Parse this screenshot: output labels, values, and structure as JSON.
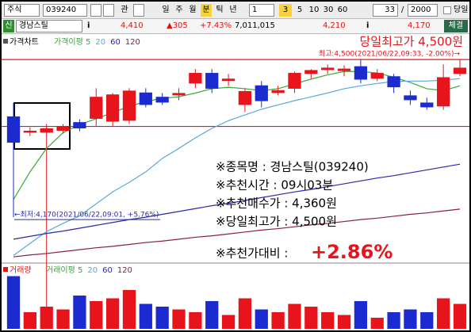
{
  "toolbar": {
    "market": "주식",
    "code": "039240",
    "watch": "관",
    "periods": [
      "일",
      "주",
      "월",
      "분",
      "틱",
      "년"
    ],
    "interval": "1",
    "minutes": [
      "3",
      "5",
      "10",
      "30",
      "60"
    ],
    "count": "33",
    "separator": "/",
    "total": "2000",
    "today": "당일"
  },
  "quote": {
    "badge": "신",
    "name": "경남스틸",
    "info": "i",
    "price": "4,410",
    "change": "▲305",
    "rate": "+7.43%",
    "volume": "7,011,015",
    "open": "4,210",
    "info2": "i",
    "low": "4,170",
    "trade": "체결"
  },
  "annotations": {
    "high_title": "당일최고가 4,500원",
    "high_note": "최고:4,500(2021/06/22,09:33, -2.00%)→",
    "low_note": "←최저:4,170(2021/06/22,09:01, +5.76%)",
    "lines": [
      "※종목명 : 경남스틸(039240)",
      "※추천시간 : 09시03분",
      "※추천매수가 : 4,360원",
      "※당일최고가 : 4,500원",
      "※추천가대비 : "
    ],
    "gain": "+2.86%"
  },
  "chart_data": [
    {
      "type": "candlestick",
      "title": "가격차트",
      "ylim": [
        4074,
        4555
      ],
      "up_color": "#e8141c",
      "down_color": "#1c2bd0",
      "reference_lines": [
        4500,
        4360
      ],
      "reference_color": "#e8141c",
      "open": [
        4381,
        4347,
        4347,
        4351,
        4369,
        4376,
        4370,
        4372,
        4431,
        4422,
        4425,
        4450,
        4472,
        4455,
        4405,
        4446,
        4430,
        4439,
        4470,
        4478,
        4476,
        4486,
        4460,
        4465,
        4425,
        4410,
        4402,
        4470
      ],
      "high": [
        4409,
        4358,
        4365,
        4365,
        4375,
        4440,
        4430,
        4440,
        4440,
        4430,
        4440,
        4480,
        4480,
        4470,
        4440,
        4455,
        4445,
        4475,
        4480,
        4490,
        4488,
        4500,
        4480,
        4470,
        4435,
        4420,
        4490,
        4500
      ],
      "low": [
        4170,
        4340,
        4336,
        4345,
        4350,
        4360,
        4360,
        4365,
        4400,
        4405,
        4415,
        4440,
        4430,
        4445,
        4390,
        4400,
        4425,
        4430,
        4460,
        4470,
        4465,
        4450,
        4455,
        4430,
        4405,
        4395,
        4395,
        4465
      ],
      "close": [
        4326,
        4351,
        4356,
        4361,
        4356,
        4422,
        4427,
        4435,
        4405,
        4410,
        4430,
        4472,
        4439,
        4460,
        4434,
        4413,
        4436,
        4472,
        4478,
        4483,
        4481,
        4458,
        4472,
        4442,
        4415,
        4400,
        4463,
        4483
      ],
      "series": [
        {
          "name": "가격이평 5",
          "color": "#3aa83a",
          "values": [
            4207,
            4265,
            4314,
            4347,
            4364,
            4376,
            4389,
            4402,
            4412,
            4419,
            4422,
            4430,
            4439,
            4442,
            4439,
            4435,
            4439,
            4449,
            4459,
            4468,
            4475,
            4475,
            4472,
            4463,
            4452,
            4439,
            4435,
            4445
          ]
        },
        {
          "name": "20",
          "color": "#5aa8e0",
          "values": [
            4090,
            4115,
            4140,
            4157,
            4173,
            4198,
            4223,
            4243,
            4265,
            4293,
            4314,
            4336,
            4356,
            4372,
            4384,
            4396,
            4405,
            4414,
            4422,
            4430,
            4439,
            4445,
            4450,
            4454,
            4455,
            4455,
            4457,
            4460
          ]
        },
        {
          "name": "60",
          "color": "#2a2aa8",
          "values": [
            4124,
            4130,
            4136,
            4141,
            4147,
            4153,
            4159,
            4165,
            4170,
            4176,
            4182,
            4188,
            4194,
            4199,
            4205,
            4211,
            4217,
            4223,
            4228,
            4234,
            4240,
            4246,
            4252,
            4257,
            4263,
            4269,
            4275,
            4281
          ]
        },
        {
          "name": "120",
          "color": "#8a2040",
          "values": [
            4087,
            4091,
            4094,
            4098,
            4102,
            4106,
            4109,
            4113,
            4117,
            4120,
            4124,
            4128,
            4131,
            4135,
            4139,
            4143,
            4146,
            4150,
            4154,
            4157,
            4161,
            4165,
            4168,
            4172,
            4176,
            4179,
            4183,
            4187
          ]
        }
      ]
    },
    {
      "type": "bar",
      "title": "거래량",
      "ylim": [
        0,
        100
      ],
      "values": [
        95,
        30,
        40,
        35,
        60,
        50,
        55,
        70,
        45,
        40,
        35,
        30,
        50,
        25,
        55,
        35,
        30,
        45,
        40,
        30,
        25,
        50,
        20,
        30,
        35,
        30,
        55,
        45
      ],
      "legend": [
        {
          "name": "거래이평 5",
          "color": "#3aa83a"
        },
        {
          "name": "20",
          "color": "#5aa8e0"
        },
        {
          "name": "60",
          "color": "#2a2aa8"
        },
        {
          "name": "120",
          "color": "#8a2040"
        }
      ]
    }
  ]
}
